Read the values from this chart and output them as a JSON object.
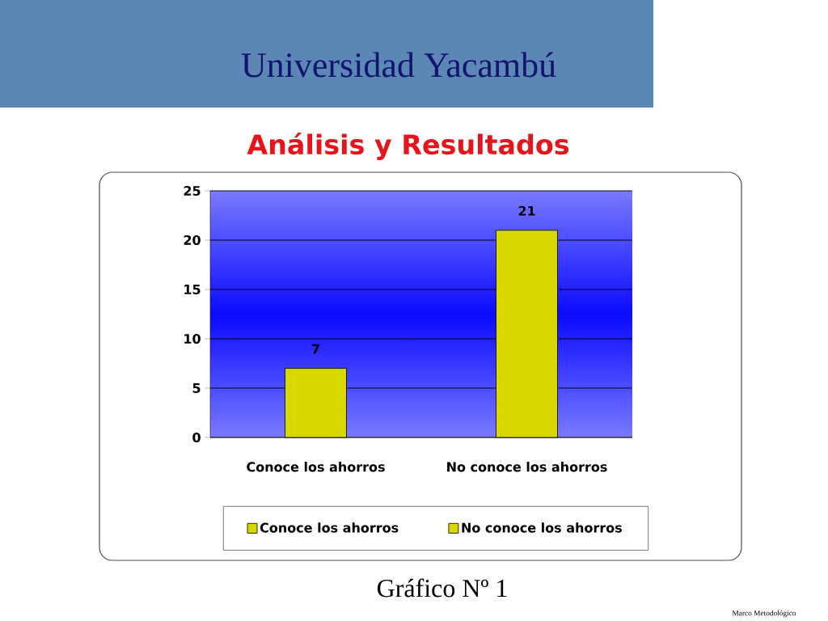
{
  "chart_data": {
    "type": "bar",
    "title": "Universidad Yacambú",
    "subtitle": "Análisis y Resultados",
    "categories": [
      "Conoce los ahorros",
      "No conoce los ahorros"
    ],
    "series": [
      {
        "name": "Conoce los ahorros",
        "color": "#d8d800",
        "values": [
          7,
          null
        ]
      },
      {
        "name": "No conoce los ahorros",
        "color": "#d8d800",
        "values": [
          null,
          21
        ]
      }
    ],
    "ylim": [
      0,
      25
    ],
    "yticks": [
      0,
      5,
      10,
      15,
      20,
      25
    ],
    "grid": "y",
    "legend": "bottom",
    "data_labels": true,
    "annotations": [
      "Gráfico Nº 1",
      "Marco Metodológico"
    ]
  }
}
